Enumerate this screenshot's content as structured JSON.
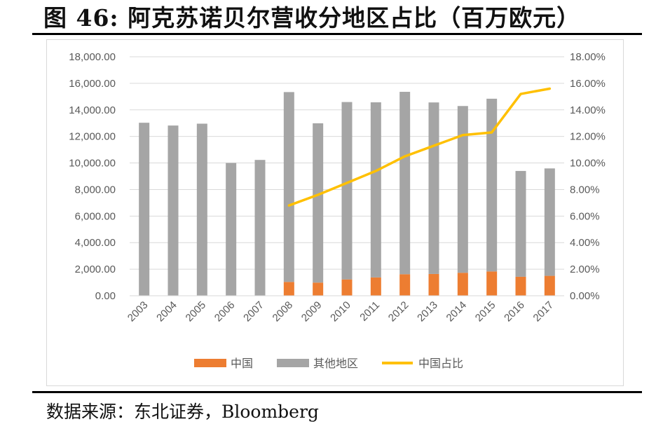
{
  "title": "图 46: 阿克苏诺贝尔营收分地区占比（百万欧元）",
  "source": "数据来源：东北证券，Bloomberg",
  "colors": {
    "china": "#ED7D31",
    "other": "#A5A5A5",
    "ratio": "#FFC000",
    "grid": "#D9D9D9",
    "tick": "#595959"
  },
  "chart_data": {
    "type": "bar",
    "stacked": true,
    "title": "",
    "categories": [
      "2003",
      "2004",
      "2005",
      "2006",
      "2007",
      "2008",
      "2009",
      "2010",
      "2011",
      "2012",
      "2013",
      "2014",
      "2015",
      "2016",
      "2017"
    ],
    "series": [
      {
        "name": "中国",
        "axis": "left",
        "values": [
          null,
          null,
          null,
          null,
          null,
          1040,
          990,
          1230,
          1380,
          1620,
          1640,
          1730,
          1830,
          1430,
          1500
        ]
      },
      {
        "name": "其他地区",
        "axis": "left",
        "values": [
          13030,
          12820,
          12960,
          10000,
          10230,
          14300,
          12000,
          13360,
          13190,
          13740,
          12920,
          12560,
          13010,
          7970,
          8090
        ]
      },
      {
        "name": "中国占比",
        "axis": "right",
        "type": "line",
        "values": [
          null,
          null,
          null,
          null,
          null,
          6.8,
          7.6,
          8.5,
          9.4,
          10.5,
          11.3,
          12.1,
          12.3,
          15.2,
          15.6
        ]
      }
    ],
    "y_left": {
      "min": 0,
      "max": 18000,
      "ticks": [
        "0.00",
        "2,000.00",
        "4,000.00",
        "6,000.00",
        "8,000.00",
        "10,000.00",
        "12,000.00",
        "14,000.00",
        "16,000.00",
        "18,000.00"
      ]
    },
    "y_right": {
      "min": 0,
      "max": 18,
      "ticks": [
        "0.00%",
        "2.00%",
        "4.00%",
        "6.00%",
        "8.00%",
        "10.00%",
        "12.00%",
        "14.00%",
        "16.00%",
        "18.00%"
      ]
    },
    "grid": true,
    "legend_position": "bottom"
  }
}
